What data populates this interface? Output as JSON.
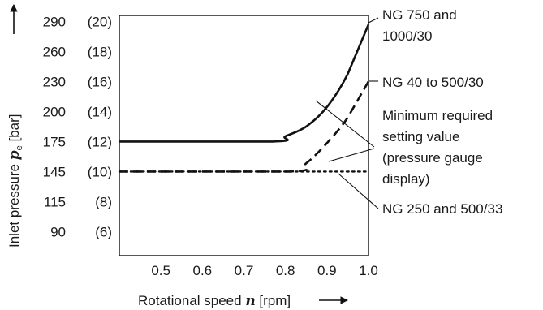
{
  "chart_data": {
    "type": "line",
    "title": "",
    "xlabel": {
      "prefix": "Rotational speed ",
      "variable": "n",
      "suffix": " [rpm]"
    },
    "ylabel": {
      "prefix": "Inlet pressure ",
      "variable": "p",
      "subscript": "e",
      "suffix": " [bar]"
    },
    "xlim": [
      0.4,
      1.0
    ],
    "x_ticks": [
      "0.5",
      "0.6",
      "0.7",
      "0.8",
      "0.9",
      "1.0"
    ],
    "x_tick_values": [
      0.5,
      0.6,
      0.7,
      0.8,
      0.9,
      1.0
    ],
    "y_ticks": [
      {
        "value": 6,
        "psi": "90",
        "bar": "(6)"
      },
      {
        "value": 8,
        "psi": "115",
        "bar": "(8)"
      },
      {
        "value": 10,
        "psi": "145",
        "bar": "(10)"
      },
      {
        "value": 12,
        "psi": "175",
        "bar": "(12)"
      },
      {
        "value": 14,
        "psi": "200",
        "bar": "(14)"
      },
      {
        "value": 16,
        "psi": "230",
        "bar": "(16)"
      },
      {
        "value": 18,
        "psi": "260",
        "bar": "(18)"
      },
      {
        "value": 20,
        "psi": "290",
        "bar": "(20)"
      }
    ],
    "ylim": [
      4.4,
      20.4
    ],
    "grid": false,
    "series": [
      {
        "name": "NG 750 and 1000/30",
        "style": "solid",
        "points": [
          [
            0.4,
            12.0
          ],
          [
            0.77,
            12.0
          ],
          [
            0.8,
            12.35
          ],
          [
            0.85,
            13.0
          ],
          [
            0.9,
            14.3
          ],
          [
            0.95,
            16.5
          ],
          [
            1.0,
            19.8
          ]
        ]
      },
      {
        "name": "NG 40 to 500/30",
        "style": "dashed",
        "points": [
          [
            0.4,
            10.0
          ],
          [
            0.81,
            10.0
          ],
          [
            0.85,
            10.55
          ],
          [
            0.9,
            11.9
          ],
          [
            0.95,
            13.6
          ],
          [
            1.0,
            16.0
          ]
        ]
      },
      {
        "name": "NG 250 and 500/33",
        "style": "dotted",
        "points": [
          [
            0.4,
            10.0
          ],
          [
            1.0,
            10.0
          ]
        ]
      }
    ],
    "annotations": [
      {
        "id": "ng750",
        "lines": [
          "NG 750 and",
          "1000/30"
        ]
      },
      {
        "id": "ng40",
        "lines": [
          "NG 40 to 500/30"
        ]
      },
      {
        "id": "minimum",
        "lines": [
          "Minimum required",
          "setting value",
          "(pressure gauge",
          "display)"
        ]
      },
      {
        "id": "ng250",
        "lines": [
          "NG 250 and 500/33"
        ]
      }
    ],
    "colors": {
      "line": "#111111",
      "text": "#1a1a1a",
      "background": "#ffffff"
    }
  }
}
